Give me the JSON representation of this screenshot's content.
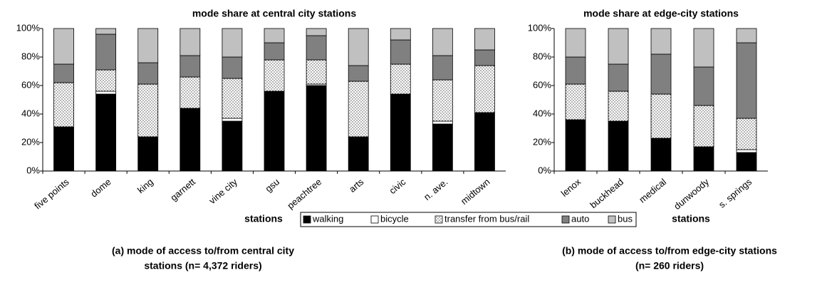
{
  "chart_data": [
    {
      "type": "bar",
      "stacked": true,
      "title": "mode share at central city stations",
      "x_label": "stations",
      "caption": [
        "(a) mode of access to/from central city",
        "stations (n= 4,372 riders)"
      ],
      "categories": [
        "five points",
        "dome",
        "king",
        "garnett",
        "vine city",
        "gsu",
        "peachtree",
        "arts",
        "civic",
        "n. ave.",
        "midtown"
      ],
      "series": [
        {
          "name": "walking",
          "color": "#000000",
          "values": [
            31,
            54,
            24,
            44,
            35,
            56,
            60,
            24,
            54,
            33,
            41
          ]
        },
        {
          "name": "bicycle",
          "color": "#ffffff",
          "values": [
            0,
            2,
            0,
            0,
            2,
            0,
            1,
            0,
            0,
            2,
            0
          ]
        },
        {
          "name": "transfer from bus/rail",
          "color": "#ffffff",
          "pattern": "dots",
          "values": [
            31,
            15,
            37,
            22,
            28,
            22,
            17,
            39,
            21,
            29,
            33
          ]
        },
        {
          "name": "auto",
          "color": "#808080",
          "values": [
            13,
            25,
            15,
            15,
            15,
            12,
            17,
            11,
            17,
            17,
            11
          ]
        },
        {
          "name": "bus",
          "color": "#c0c0c0",
          "values": [
            25,
            4,
            24,
            19,
            20,
            10,
            5,
            26,
            8,
            19,
            15
          ]
        }
      ],
      "ylim": [
        0,
        100
      ],
      "yticks": [
        {
          "value": 0,
          "label": "0%"
        },
        {
          "value": 20,
          "label": "20%"
        },
        {
          "value": 40,
          "label": "40%"
        },
        {
          "value": 60,
          "label": "60%"
        },
        {
          "value": 80,
          "label": "80%"
        },
        {
          "value": 100,
          "label": "100%"
        }
      ]
    },
    {
      "type": "bar",
      "stacked": true,
      "title": "mode share at edge-city stations",
      "x_label": "stations",
      "caption": [
        "(b) mode of access to/from edge-city stations",
        "(n= 260 riders)"
      ],
      "categories": [
        "lenox",
        "buckhead",
        "medical",
        "dunwoody",
        "s. springs"
      ],
      "series": [
        {
          "color": "#000000",
          "values": [
            36,
            35,
            23,
            17,
            13
          ]
        },
        {
          "color": "#ffffff",
          "values": [
            0,
            0,
            0,
            0,
            2
          ]
        },
        {
          "color": "#ffffff",
          "pattern": "dots",
          "values": [
            25,
            21,
            31,
            29,
            22
          ]
        },
        {
          "color": "#808080",
          "values": [
            19,
            19,
            28,
            27,
            53
          ]
        },
        {
          "color": "#c0c0c0",
          "values": [
            20,
            25,
            18,
            27,
            10
          ]
        }
      ],
      "ylim": [
        0,
        100
      ],
      "yticks": [
        {
          "value": 0,
          "label": "0%"
        },
        {
          "value": 20,
          "label": "20%"
        },
        {
          "value": 40,
          "label": "40%"
        },
        {
          "value": 60,
          "label": "60%"
        },
        {
          "value": 80,
          "label": "80%"
        },
        {
          "value": 100,
          "label": "100%"
        }
      ]
    }
  ]
}
